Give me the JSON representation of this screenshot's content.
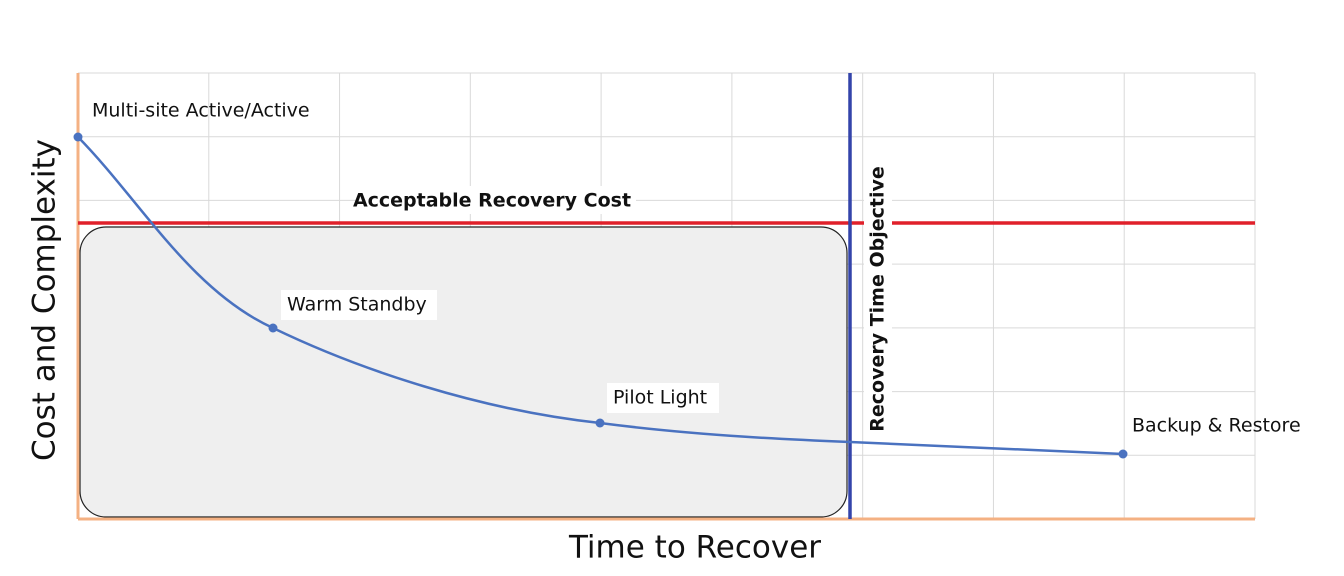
{
  "title_x": "Time to Recover",
  "title_y": "Cost and Complexity",
  "threshold_cost": {
    "label": "Acceptable Recovery Cost"
  },
  "threshold_time": {
    "label": "Recovery Time Objective"
  },
  "points": [
    {
      "label": "Multi-site Active/Active"
    },
    {
      "label": "Warm Standby"
    },
    {
      "label": "Pilot Light"
    },
    {
      "label": "Backup & Restore"
    }
  ]
}
